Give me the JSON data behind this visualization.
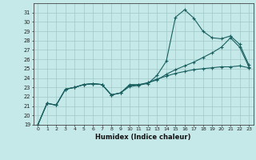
{
  "xlabel": "Humidex (Indice chaleur)",
  "xlim": [
    -0.5,
    23.5
  ],
  "ylim": [
    19,
    32
  ],
  "yticks": [
    19,
    20,
    21,
    22,
    23,
    24,
    25,
    26,
    27,
    28,
    29,
    30,
    31
  ],
  "xticks": [
    0,
    1,
    2,
    3,
    4,
    5,
    6,
    7,
    8,
    9,
    10,
    11,
    12,
    13,
    14,
    15,
    16,
    17,
    18,
    19,
    20,
    21,
    22,
    23
  ],
  "bg_color": "#c5e8e8",
  "grid_color": "#a0c8c8",
  "line_color": "#1a6060",
  "line1_x": [
    0,
    1,
    2,
    3,
    4,
    5,
    6,
    7,
    8,
    9,
    10,
    11,
    12,
    13,
    14,
    15,
    16,
    17,
    18,
    19,
    20,
    21,
    22,
    23
  ],
  "line1_y": [
    19.0,
    21.3,
    21.1,
    22.8,
    23.0,
    23.3,
    23.4,
    23.3,
    22.2,
    22.4,
    23.3,
    23.3,
    23.4,
    24.3,
    25.8,
    30.5,
    31.3,
    30.4,
    29.0,
    28.3,
    28.2,
    28.5,
    27.6,
    25.4
  ],
  "line2_x": [
    0,
    1,
    2,
    3,
    4,
    5,
    6,
    7,
    8,
    9,
    10,
    11,
    12,
    13,
    14,
    15,
    16,
    17,
    18,
    19,
    20,
    21,
    22,
    23
  ],
  "line2_y": [
    19.0,
    21.3,
    21.1,
    22.8,
    23.0,
    23.3,
    23.4,
    23.3,
    22.2,
    22.4,
    23.2,
    23.3,
    23.5,
    23.8,
    24.4,
    24.9,
    25.3,
    25.7,
    26.2,
    26.7,
    27.3,
    28.3,
    27.3,
    25.2
  ],
  "line3_x": [
    0,
    1,
    2,
    3,
    4,
    5,
    6,
    7,
    8,
    9,
    10,
    11,
    12,
    13,
    14,
    15,
    16,
    17,
    18,
    19,
    20,
    21,
    22,
    23
  ],
  "line3_y": [
    19.0,
    21.3,
    21.1,
    22.8,
    23.0,
    23.3,
    23.4,
    23.3,
    22.2,
    22.4,
    23.1,
    23.2,
    23.5,
    23.9,
    24.2,
    24.5,
    24.7,
    24.9,
    25.0,
    25.1,
    25.2,
    25.2,
    25.3,
    25.1
  ]
}
